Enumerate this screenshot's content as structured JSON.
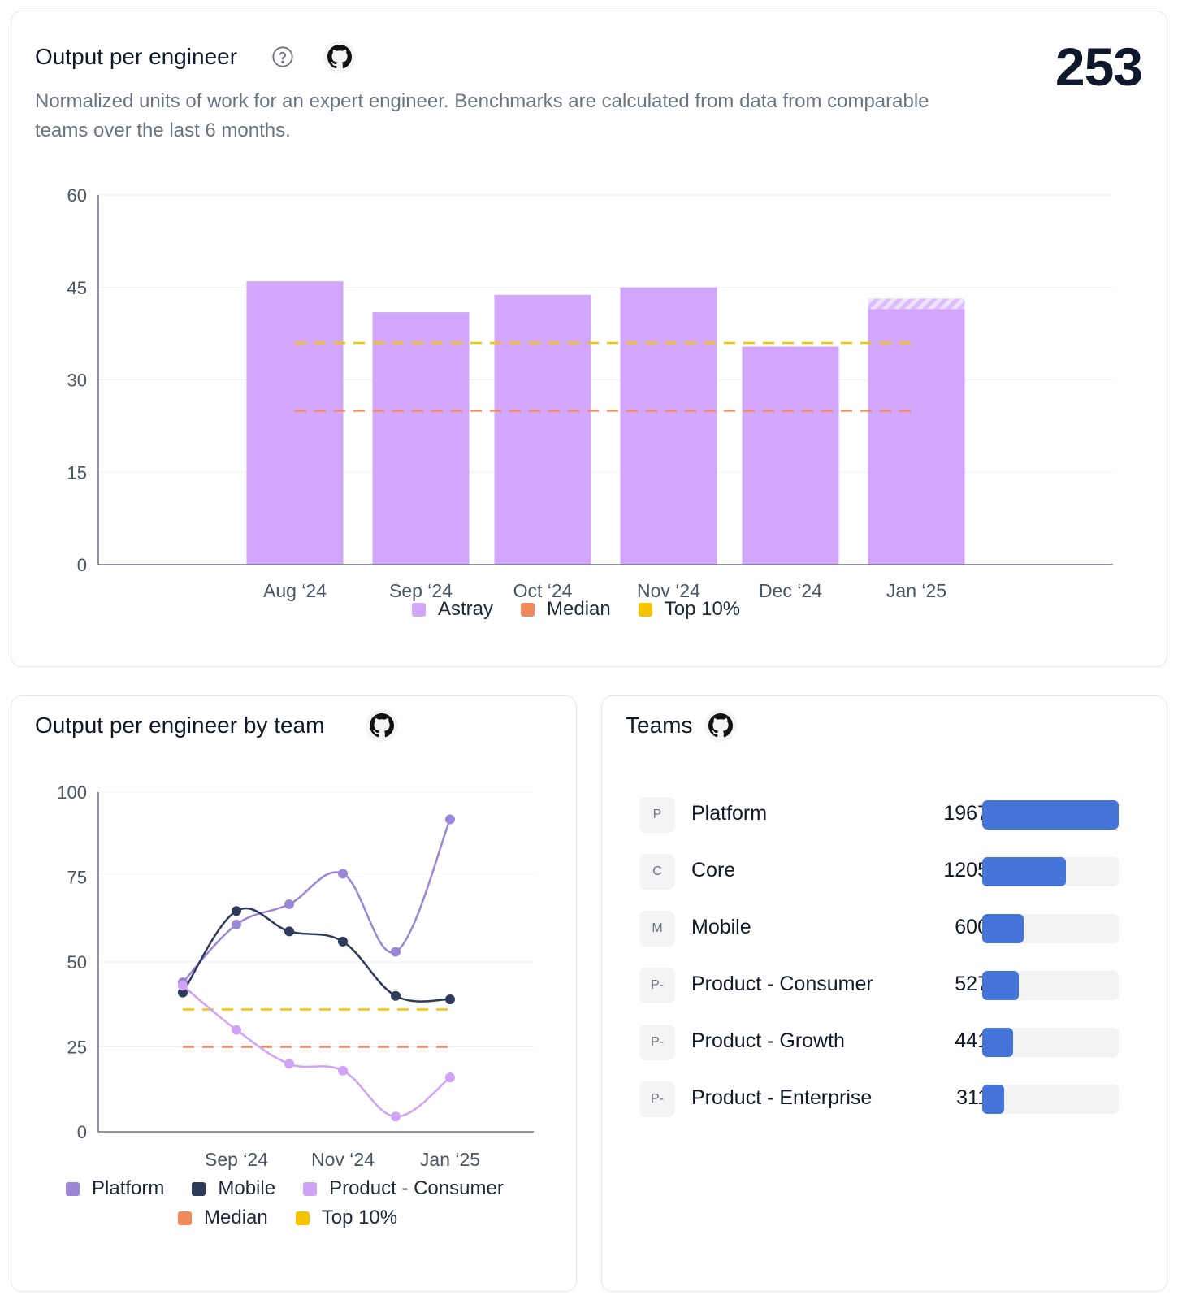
{
  "top_card": {
    "title": "Output per engineer",
    "big_number": "253",
    "subtitle": "Normalized units of work for an expert engineer. Benchmarks are calculated from data from comparable teams over the last 6 months.",
    "help_icon": "question-circle-icon",
    "github_icon": "github-icon"
  },
  "team_card": {
    "title": "Output per engineer by team",
    "github_icon": "github-icon"
  },
  "teams_card": {
    "title": "Teams",
    "github_icon": "github-icon",
    "bar_color": "#4574d9",
    "max_value": 1967,
    "teams": [
      {
        "badge": "P",
        "name": "Platform",
        "value": 1967
      },
      {
        "badge": "C",
        "name": "Core",
        "value": 1205
      },
      {
        "badge": "M",
        "name": "Mobile",
        "value": 600
      },
      {
        "badge": "P-",
        "name": "Product - Consumer",
        "value": 527
      },
      {
        "badge": "P-",
        "name": "Product - Growth",
        "value": 441
      },
      {
        "badge": "P-",
        "name": "Product - Enterprise",
        "value": 311
      }
    ]
  },
  "chart_data": [
    {
      "type": "bar",
      "categories": [
        "Aug ‘24",
        "Sep ‘24",
        "Oct ‘24",
        "Nov ‘24",
        "Dec ‘24",
        "Jan ‘25"
      ],
      "series": [
        {
          "name": "Astray",
          "values": [
            46,
            41,
            43.8,
            45,
            35.4,
            41.5
          ],
          "color": "#d2a6fb"
        }
      ],
      "partial_top": {
        "category": "Jan ‘25",
        "value": 43.2
      },
      "benchmarks": [
        {
          "name": "Median",
          "value": 25,
          "color": "#f08a5d"
        },
        {
          "name": "Top 10%",
          "value": 36,
          "color": "#f5c400"
        }
      ],
      "ylim": [
        0,
        60
      ],
      "yticks": [
        0,
        15,
        30,
        45,
        60
      ],
      "grid": true,
      "legend": [
        "Astray",
        "Median",
        "Top 10%"
      ],
      "legend_position": "bottom-center"
    },
    {
      "type": "line",
      "x": [
        "Aug ‘24",
        "Sep ‘24",
        "Oct ‘24",
        "Nov ‘24",
        "Dec ‘24",
        "Jan ‘25"
      ],
      "xtick_labels": [
        "Sep ‘24",
        "Nov ‘24",
        "Jan ‘25"
      ],
      "series": [
        {
          "name": "Platform",
          "values": [
            44,
            61,
            67,
            76,
            53,
            92
          ],
          "color": "#9b87d6"
        },
        {
          "name": "Mobile",
          "values": [
            41,
            65,
            59,
            56,
            40,
            39
          ],
          "color": "#2d3a5a"
        },
        {
          "name": "Product - Consumer",
          "values": [
            43,
            30,
            20,
            18,
            4.5,
            16
          ],
          "color": "#d0a3f7"
        }
      ],
      "benchmarks": [
        {
          "name": "Median",
          "value": 25,
          "color": "#f08a5d"
        },
        {
          "name": "Top 10%",
          "value": 36,
          "color": "#f5c400"
        }
      ],
      "ylim": [
        0,
        100
      ],
      "yticks": [
        0,
        25,
        50,
        75,
        100
      ],
      "grid": true,
      "legend": [
        "Platform",
        "Mobile",
        "Product - Consumer",
        "Median",
        "Top 10%"
      ],
      "legend_position": "bottom-center"
    }
  ]
}
